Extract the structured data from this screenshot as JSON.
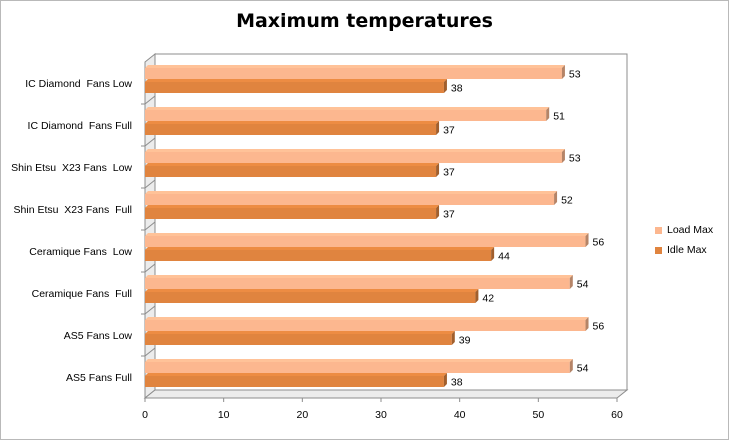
{
  "chart_data": {
    "type": "bar",
    "orientation": "horizontal",
    "title": "Maximum temperatures",
    "categories": [
      "IC Diamond  Fans Low",
      "IC Diamond  Fans Full",
      "Shin Etsu  X23 Fans  Low",
      "Shin Etsu  X23 Fans  Full",
      "Ceramique Fans  Low",
      "Ceramique Fans  Full",
      "AS5 Fans Low",
      "AS5 Fans Full"
    ],
    "series": [
      {
        "name": "Load Max",
        "color": "#fcb78f",
        "values": [
          53,
          51,
          53,
          52,
          56,
          54,
          56,
          54
        ]
      },
      {
        "name": "Idle Max",
        "color": "#e0843f",
        "values": [
          38,
          37,
          37,
          37,
          44,
          42,
          39,
          38
        ]
      }
    ],
    "xlim": [
      0,
      60
    ],
    "xticks": [
      0,
      10,
      20,
      30,
      40,
      50,
      60
    ],
    "grid": false,
    "legend_position": "right"
  }
}
